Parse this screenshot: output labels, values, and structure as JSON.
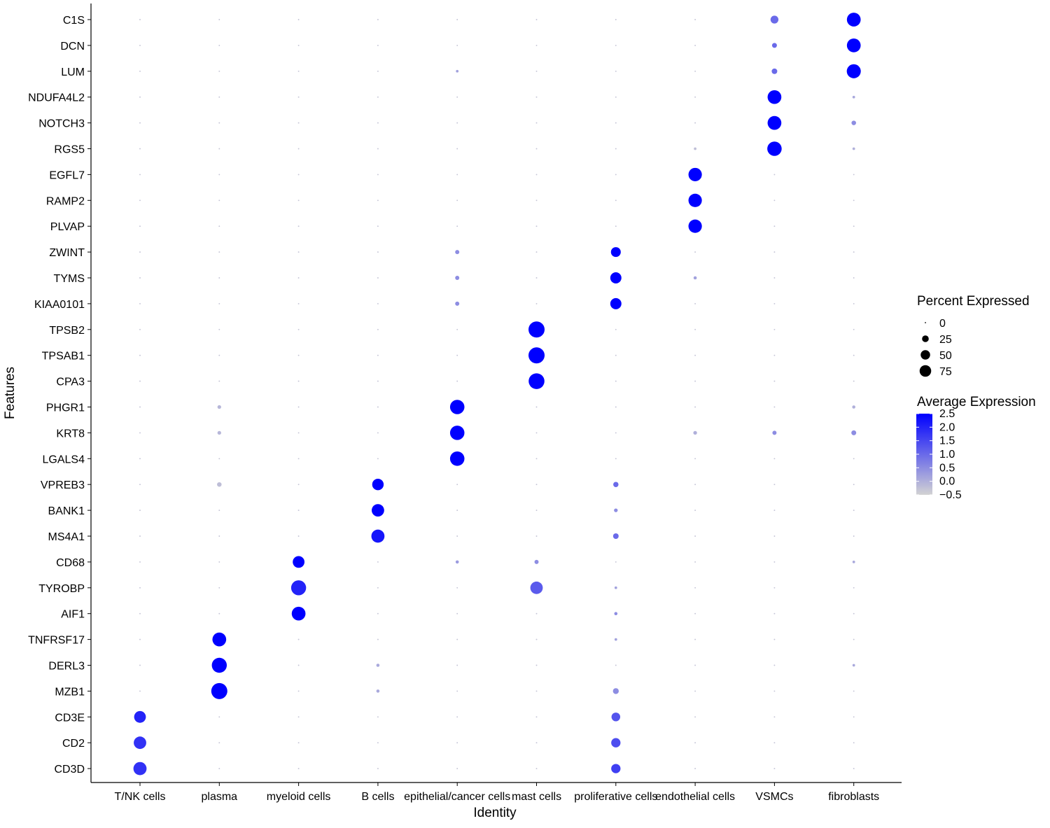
{
  "chart_data": {
    "type": "dotplot",
    "xlabel": "Identity",
    "ylabel": "Features",
    "identities": [
      "T/NK cells",
      "plasma",
      "myeloid cells",
      "B cells",
      "epithelial/cancer cells",
      "mast cells",
      "proliferative cells",
      "endothelial cells",
      "VSMCs",
      "fibroblasts"
    ],
    "features": [
      "C1S",
      "DCN",
      "LUM",
      "NDUFA4L2",
      "NOTCH3",
      "RGS5",
      "EGFL7",
      "RAMP2",
      "PLVAP",
      "ZWINT",
      "TYMS",
      "KIAA0101",
      "TPSB2",
      "TPSAB1",
      "CPA3",
      "PHGR1",
      "KRT8",
      "LGALS4",
      "VPREB3",
      "BANK1",
      "MS4A1",
      "CD68",
      "TYROBP",
      "AIF1",
      "TNFRSF17",
      "DERL3",
      "MZB1",
      "CD3E",
      "CD2",
      "CD3D"
    ],
    "size_legend": {
      "title": "Percent Expressed",
      "breaks": [
        0,
        25,
        50,
        75
      ],
      "labels": [
        "0",
        "25",
        "50",
        "75"
      ]
    },
    "color_legend": {
      "title": "Average Expression",
      "range": [
        -0.5,
        2.5
      ],
      "breaks": [
        2.5,
        2.0,
        1.5,
        1.0,
        0.5,
        0.0,
        -0.5
      ],
      "labels": [
        "2.5",
        "2.0",
        "1.5",
        "1.0",
        "0.5",
        "0.0",
        "−0.5"
      ],
      "low_color": "#d3d3d3",
      "high_color": "#0000ff"
    },
    "points": [
      {
        "feature": "C1S",
        "identity": "VSMCs",
        "pct": 18,
        "avg": 1.0
      },
      {
        "feature": "C1S",
        "identity": "fibroblasts",
        "pct": 55,
        "avg": 2.5
      },
      {
        "feature": "DCN",
        "identity": "VSMCs",
        "pct": 7,
        "avg": 1.0
      },
      {
        "feature": "DCN",
        "identity": "fibroblasts",
        "pct": 55,
        "avg": 2.5
      },
      {
        "feature": "LUM",
        "identity": "epithelial/cancer cells",
        "pct": 2,
        "avg": 0.2
      },
      {
        "feature": "LUM",
        "identity": "VSMCs",
        "pct": 9,
        "avg": 1.0
      },
      {
        "feature": "LUM",
        "identity": "fibroblasts",
        "pct": 57,
        "avg": 2.5
      },
      {
        "feature": "NDUFA4L2",
        "identity": "VSMCs",
        "pct": 55,
        "avg": 2.5
      },
      {
        "feature": "NDUFA4L2",
        "identity": "fibroblasts",
        "pct": 2,
        "avg": 0.1
      },
      {
        "feature": "NOTCH3",
        "identity": "VSMCs",
        "pct": 55,
        "avg": 2.5
      },
      {
        "feature": "NOTCH3",
        "identity": "fibroblasts",
        "pct": 6,
        "avg": 0.5
      },
      {
        "feature": "RGS5",
        "identity": "endothelial cells",
        "pct": 2,
        "avg": -0.2
      },
      {
        "feature": "RGS5",
        "identity": "VSMCs",
        "pct": 60,
        "avg": 2.5
      },
      {
        "feature": "RGS5",
        "identity": "fibroblasts",
        "pct": 2,
        "avg": 0.0
      },
      {
        "feature": "EGFL7",
        "identity": "endothelial cells",
        "pct": 52,
        "avg": 2.5
      },
      {
        "feature": "RAMP2",
        "identity": "endothelial cells",
        "pct": 52,
        "avg": 2.5
      },
      {
        "feature": "PLVAP",
        "identity": "endothelial cells",
        "pct": 52,
        "avg": 2.5
      },
      {
        "feature": "ZWINT",
        "identity": "epithelial/cancer cells",
        "pct": 5,
        "avg": 0.5
      },
      {
        "feature": "ZWINT",
        "identity": "proliferative cells",
        "pct": 28,
        "avg": 2.5
      },
      {
        "feature": "TYMS",
        "identity": "epithelial/cancer cells",
        "pct": 5,
        "avg": 0.5
      },
      {
        "feature": "TYMS",
        "identity": "proliferative cells",
        "pct": 36,
        "avg": 2.5
      },
      {
        "feature": "TYMS",
        "identity": "endothelial cells",
        "pct": 3,
        "avg": 0.2
      },
      {
        "feature": "KIAA0101",
        "identity": "epithelial/cancer cells",
        "pct": 5,
        "avg": 0.5
      },
      {
        "feature": "KIAA0101",
        "identity": "proliferative cells",
        "pct": 36,
        "avg": 2.5
      },
      {
        "feature": "TPSB2",
        "identity": "mast cells",
        "pct": 75,
        "avg": 2.5
      },
      {
        "feature": "TPSAB1",
        "identity": "mast cells",
        "pct": 75,
        "avg": 2.5
      },
      {
        "feature": "CPA3",
        "identity": "mast cells",
        "pct": 72,
        "avg": 2.5
      },
      {
        "feature": "PHGR1",
        "identity": "plasma",
        "pct": 4,
        "avg": -0.1
      },
      {
        "feature": "PHGR1",
        "identity": "epithelial/cancer cells",
        "pct": 60,
        "avg": 2.5
      },
      {
        "feature": "PHGR1",
        "identity": "fibroblasts",
        "pct": 3,
        "avg": 0.0
      },
      {
        "feature": "KRT8",
        "identity": "plasma",
        "pct": 4,
        "avg": -0.1
      },
      {
        "feature": "KRT8",
        "identity": "epithelial/cancer cells",
        "pct": 60,
        "avg": 2.5
      },
      {
        "feature": "KRT8",
        "identity": "endothelial cells",
        "pct": 4,
        "avg": 0.0
      },
      {
        "feature": "KRT8",
        "identity": "VSMCs",
        "pct": 5,
        "avg": 0.5
      },
      {
        "feature": "KRT8",
        "identity": "fibroblasts",
        "pct": 7,
        "avg": 0.5
      },
      {
        "feature": "LGALS4",
        "identity": "epithelial/cancer cells",
        "pct": 60,
        "avg": 2.5
      },
      {
        "feature": "VPREB3",
        "identity": "plasma",
        "pct": 6,
        "avg": -0.2
      },
      {
        "feature": "VPREB3",
        "identity": "B cells",
        "pct": 38,
        "avg": 2.5
      },
      {
        "feature": "VPREB3",
        "identity": "proliferative cells",
        "pct": 8,
        "avg": 1.0
      },
      {
        "feature": "BANK1",
        "identity": "B cells",
        "pct": 45,
        "avg": 2.5
      },
      {
        "feature": "BANK1",
        "identity": "proliferative cells",
        "pct": 4,
        "avg": 0.5
      },
      {
        "feature": "MS4A1",
        "identity": "B cells",
        "pct": 50,
        "avg": 2.2
      },
      {
        "feature": "MS4A1",
        "identity": "proliferative cells",
        "pct": 9,
        "avg": 1.0
      },
      {
        "feature": "CD68",
        "identity": "myeloid cells",
        "pct": 40,
        "avg": 2.5
      },
      {
        "feature": "CD68",
        "identity": "epithelial/cancer cells",
        "pct": 3,
        "avg": 0.3
      },
      {
        "feature": "CD68",
        "identity": "mast cells",
        "pct": 5,
        "avg": 0.5
      },
      {
        "feature": "CD68",
        "identity": "fibroblasts",
        "pct": 2,
        "avg": 0.1
      },
      {
        "feature": "TYROBP",
        "identity": "myeloid cells",
        "pct": 65,
        "avg": 2.0
      },
      {
        "feature": "TYROBP",
        "identity": "mast cells",
        "pct": 45,
        "avg": 1.2
      },
      {
        "feature": "TYROBP",
        "identity": "proliferative cells",
        "pct": 2,
        "avg": 0.2
      },
      {
        "feature": "AIF1",
        "identity": "myeloid cells",
        "pct": 55,
        "avg": 2.5
      },
      {
        "feature": "AIF1",
        "identity": "proliferative cells",
        "pct": 3,
        "avg": 0.5
      },
      {
        "feature": "TNFRSF17",
        "identity": "plasma",
        "pct": 55,
        "avg": 2.5
      },
      {
        "feature": "TNFRSF17",
        "identity": "proliferative cells",
        "pct": 2,
        "avg": 0.2
      },
      {
        "feature": "DERL3",
        "identity": "plasma",
        "pct": 65,
        "avg": 2.5
      },
      {
        "feature": "DERL3",
        "identity": "B cells",
        "pct": 3,
        "avg": 0.1
      },
      {
        "feature": "DERL3",
        "identity": "fibroblasts",
        "pct": 2,
        "avg": 0.1
      },
      {
        "feature": "MZB1",
        "identity": "plasma",
        "pct": 75,
        "avg": 2.5
      },
      {
        "feature": "MZB1",
        "identity": "B cells",
        "pct": 3,
        "avg": 0.1
      },
      {
        "feature": "MZB1",
        "identity": "proliferative cells",
        "pct": 10,
        "avg": 0.5
      },
      {
        "feature": "CD3E",
        "identity": "T/NK cells",
        "pct": 40,
        "avg": 2.0
      },
      {
        "feature": "CD3E",
        "identity": "proliferative cells",
        "pct": 22,
        "avg": 1.3
      },
      {
        "feature": "CD2",
        "identity": "T/NK cells",
        "pct": 45,
        "avg": 1.8
      },
      {
        "feature": "CD2",
        "identity": "proliferative cells",
        "pct": 25,
        "avg": 1.4
      },
      {
        "feature": "CD3D",
        "identity": "T/NK cells",
        "pct": 50,
        "avg": 1.8
      },
      {
        "feature": "CD3D",
        "identity": "proliferative cells",
        "pct": 25,
        "avg": 1.6
      }
    ],
    "default_point": {
      "pct": 0.5,
      "avg": -0.3
    }
  }
}
